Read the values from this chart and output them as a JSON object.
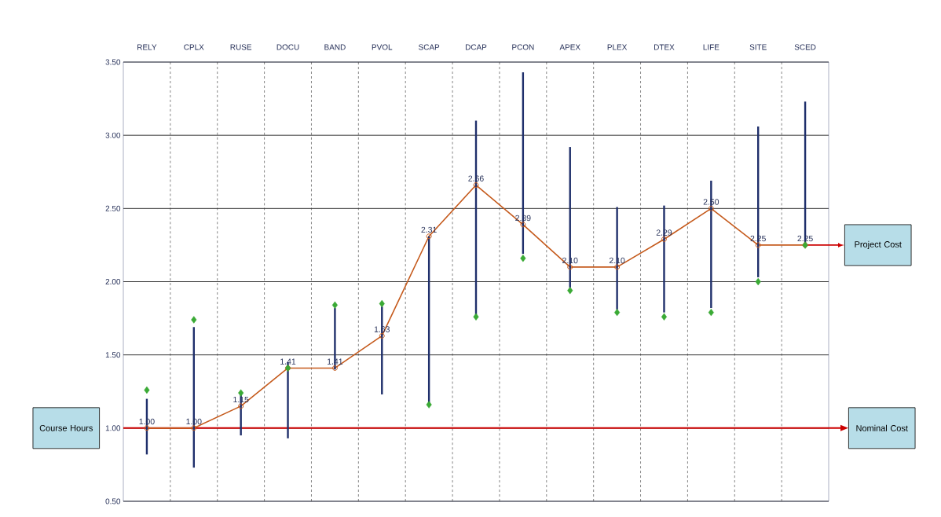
{
  "chart_data": {
    "type": "line",
    "categories": [
      "RELY",
      "CPLX",
      "RUSE",
      "DOCU",
      "BAND",
      "PVOL",
      "SCAP",
      "DCAP",
      "PCON",
      "APEX",
      "PLEX",
      "DTEX",
      "LIFE",
      "SITE",
      "SCED"
    ],
    "series": [
      {
        "color": "#c55a1c",
        "marker": "circle",
        "values": [
          1.0,
          1.0,
          1.15,
          1.41,
          1.41,
          1.63,
          2.31,
          2.66,
          2.39,
          2.1,
          2.1,
          2.29,
          2.5,
          2.25,
          2.25
        ],
        "value_labels": [
          "1.00",
          "1.00",
          "1.15",
          "1.41",
          "1.41",
          "1.63",
          "2.31",
          "2.66",
          "2.39",
          "2.10",
          "2.10",
          "2.29",
          "2.50",
          "2.25",
          "2.25"
        ],
        "errors": [
          [
            0.82,
            1.2
          ],
          [
            0.73,
            1.69
          ],
          [
            0.95,
            1.23
          ],
          [
            0.93,
            1.45
          ],
          [
            1.4,
            1.82
          ],
          [
            1.23,
            1.83
          ],
          [
            1.17,
            2.31
          ],
          [
            1.77,
            3.1
          ],
          [
            2.19,
            3.43
          ],
          [
            1.96,
            2.92
          ],
          [
            1.81,
            2.51
          ],
          [
            1.79,
            2.52
          ],
          [
            1.82,
            2.69
          ],
          [
            2.03,
            3.06
          ],
          [
            2.25,
            3.23
          ]
        ]
      },
      {
        "type": "scatter",
        "color": "#3aaa35",
        "marker": "diamond",
        "values": [
          1.26,
          1.74,
          1.24,
          1.41,
          1.84,
          1.85,
          1.16,
          1.76,
          2.16,
          1.94,
          1.79,
          1.76,
          1.79,
          2.0,
          2.25
        ]
      }
    ],
    "ylim": [
      0.5,
      3.5
    ],
    "yticks": [
      {
        "value": 0.5,
        "label": "0.50"
      },
      {
        "value": 1.0,
        "label": "1.00"
      },
      {
        "value": 1.5,
        "label": "1.50"
      },
      {
        "value": 2.0,
        "label": "2.00"
      },
      {
        "value": 2.5,
        "label": "2.50"
      },
      {
        "value": 3.0,
        "label": "3.00"
      },
      {
        "value": 3.5,
        "label": "3.50"
      }
    ],
    "grid": true,
    "ref_lines": [
      {
        "axis": "y",
        "value": 1.0,
        "label": "Nominal Cost",
        "color": "#cc0000"
      }
    ],
    "annotations": [
      "Course Hours",
      "Project Cost"
    ]
  }
}
